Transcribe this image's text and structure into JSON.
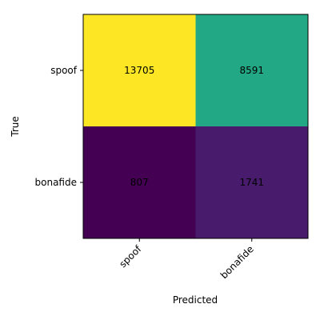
{
  "chart_data": {
    "type": "heatmap",
    "title": "",
    "xlabel": "Predicted",
    "ylabel": "True",
    "x_categories": [
      "spoof",
      "bonafide"
    ],
    "y_categories": [
      "spoof",
      "bonafide"
    ],
    "values": [
      [
        13705,
        8591
      ],
      [
        807,
        1741
      ]
    ],
    "colormap": "viridis",
    "cell_colors": [
      [
        "#fde725",
        "#22a884"
      ],
      [
        "#440154",
        "#481b6d"
      ]
    ],
    "grid": false,
    "legend": "none"
  }
}
